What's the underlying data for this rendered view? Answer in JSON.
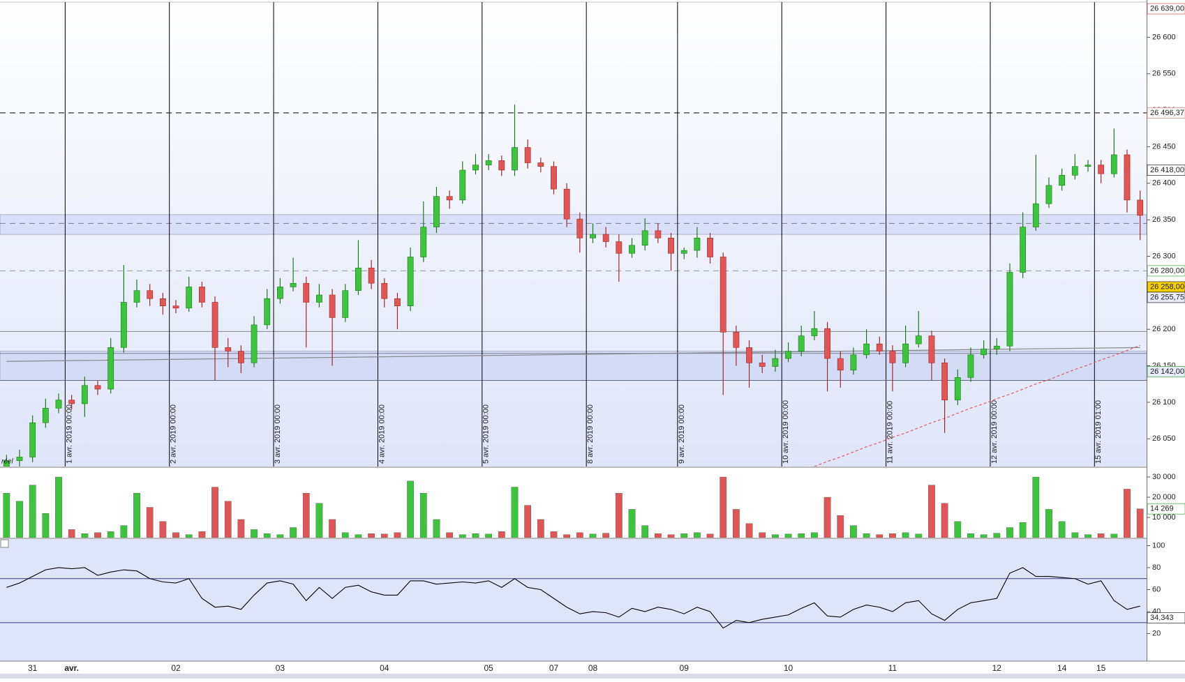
{
  "chart_data": [
    {
      "type": "candlestick",
      "categories": [
        null,
        null,
        "31",
        null,
        null,
        "avr.",
        null,
        null,
        null,
        null,
        null,
        null,
        null,
        "02",
        null,
        null,
        null,
        null,
        null,
        null,
        null,
        "03",
        null,
        null,
        null,
        null,
        null,
        null,
        null,
        "04",
        null,
        null,
        null,
        null,
        null,
        null,
        null,
        "05",
        null,
        null,
        null,
        null,
        "07",
        null,
        null,
        "08",
        null,
        null,
        null,
        null,
        null,
        null,
        "09",
        null,
        null,
        null,
        null,
        null,
        null,
        null,
        "10",
        null,
        null,
        null,
        null,
        null,
        null,
        null,
        "11",
        null,
        null,
        null,
        null,
        null,
        null,
        null,
        "12",
        null,
        null,
        null,
        null,
        "14",
        null,
        null,
        "15",
        null,
        null,
        null
      ],
      "sessions": [
        null,
        null,
        null,
        null,
        null,
        "1 avr. 2019 00:00",
        null,
        null,
        null,
        null,
        null,
        null,
        null,
        "2 avr. 2019 00:00",
        null,
        null,
        null,
        null,
        null,
        null,
        null,
        "3 avr. 2019 00:00",
        null,
        null,
        null,
        null,
        null,
        null,
        null,
        "4 avr. 2019 00:00",
        null,
        null,
        null,
        null,
        null,
        null,
        null,
        "5 avr. 2019 00:00",
        null,
        null,
        null,
        null,
        null,
        null,
        null,
        "8 avr. 2019 00:00",
        null,
        null,
        null,
        null,
        null,
        null,
        "9 avr. 2019 00:00",
        null,
        null,
        null,
        null,
        null,
        null,
        null,
        "10 avr. 2019 00:00",
        null,
        null,
        null,
        null,
        null,
        null,
        null,
        "11 avr. 2019 00:00",
        null,
        null,
        null,
        null,
        null,
        null,
        null,
        "12 avr. 2019 00:00",
        null,
        null,
        null,
        null,
        null,
        null,
        null,
        "15 avr. 2019 01:00",
        null,
        null,
        null
      ],
      "open": [
        26012,
        26020,
        26025,
        26072,
        26092,
        26103,
        26098,
        26123,
        26118,
        26175,
        26237,
        26253,
        26242,
        26232,
        26229,
        26258,
        26237,
        26175,
        26170,
        26154,
        26206,
        26242,
        26258,
        26263,
        26237,
        26247,
        26216,
        26253,
        26284,
        26263,
        26242,
        26232,
        26299,
        26340,
        26382,
        26377,
        26418,
        26425,
        26431,
        26418,
        26449,
        26428,
        26423,
        26392,
        26351,
        26325,
        26330,
        26320,
        26304,
        26315,
        26335,
        26325,
        26304,
        26308,
        26325,
        26299,
        26196,
        26175,
        26154,
        26149,
        26160,
        26170,
        26191,
        26201,
        26160,
        26144,
        26165,
        26180,
        26170,
        26154,
        26180,
        26191,
        26154,
        26103,
        26134,
        26165,
        26173,
        26177,
        26278,
        26340,
        26372,
        26397,
        26411,
        26423,
        26425,
        26413,
        26439,
        26377
      ],
      "high": [
        26028,
        26035,
        26082,
        26105,
        26112,
        26110,
        26135,
        26130,
        26188,
        26288,
        26268,
        26262,
        26250,
        26240,
        26272,
        26265,
        26245,
        26188,
        26178,
        26218,
        26255,
        26270,
        26298,
        26272,
        26262,
        26255,
        26262,
        26322,
        26295,
        26270,
        26250,
        26312,
        26375,
        26395,
        26390,
        26430,
        26440,
        26440,
        26438,
        26508,
        26460,
        26435,
        26430,
        26400,
        26360,
        26345,
        26340,
        26330,
        26325,
        26352,
        26345,
        26332,
        26312,
        26340,
        26332,
        26305,
        26205,
        26185,
        26165,
        26172,
        26182,
        26205,
        26225,
        26210,
        26170,
        26175,
        26200,
        26190,
        26178,
        26205,
        26225,
        26198,
        26160,
        26145,
        26175,
        26185,
        26188,
        26290,
        26360,
        26439,
        26408,
        26420,
        26440,
        26432,
        26432,
        26475,
        26446,
        26390
      ],
      "low": [
        26000,
        26008,
        26018,
        26065,
        26085,
        26090,
        26080,
        26110,
        26112,
        26168,
        26230,
        26232,
        26220,
        26222,
        26224,
        26230,
        26130,
        26148,
        26140,
        26148,
        26200,
        26235,
        26252,
        26175,
        26230,
        26150,
        26210,
        26247,
        26255,
        26230,
        26200,
        26225,
        26292,
        26332,
        26365,
        26372,
        26412,
        26418,
        26410,
        26410,
        26420,
        26415,
        26385,
        26340,
        26305,
        26318,
        26312,
        26265,
        26298,
        26308,
        26318,
        26280,
        26296,
        26298,
        26290,
        26110,
        26150,
        26120,
        26140,
        26142,
        26155,
        26163,
        26185,
        26115,
        26120,
        26138,
        26160,
        26165,
        26115,
        26148,
        26175,
        26130,
        26058,
        26096,
        26128,
        26160,
        26165,
        26170,
        26270,
        26335,
        26366,
        26390,
        26405,
        26416,
        26400,
        26408,
        26360,
        26322
      ],
      "close": [
        26020,
        26025,
        26072,
        26092,
        26103,
        26098,
        26123,
        26118,
        26175,
        26237,
        26253,
        26242,
        26232,
        26229,
        26258,
        26237,
        26175,
        26170,
        26154,
        26206,
        26242,
        26258,
        26263,
        26237,
        26247,
        26216,
        26253,
        26284,
        26263,
        26242,
        26232,
        26299,
        26340,
        26382,
        26377,
        26418,
        26425,
        26431,
        26418,
        26449,
        26428,
        26423,
        26392,
        26351,
        26325,
        26330,
        26320,
        26304,
        26315,
        26335,
        26325,
        26304,
        26308,
        26325,
        26299,
        26196,
        26175,
        26154,
        26149,
        26160,
        26170,
        26191,
        26201,
        26160,
        26144,
        26165,
        26180,
        26170,
        26154,
        26180,
        26191,
        26154,
        26103,
        26134,
        26165,
        26173,
        26177,
        26278,
        26340,
        26372,
        26397,
        26411,
        26423,
        26425,
        26413,
        26439,
        26377,
        26356
      ],
      "ma": [
        null,
        null,
        null,
        null,
        null,
        null,
        null,
        null,
        null,
        null,
        null,
        null,
        null,
        null,
        null,
        null,
        null,
        null,
        null,
        null,
        null,
        null,
        null,
        null,
        null,
        null,
        null,
        null,
        null,
        null,
        null,
        null,
        null,
        null,
        null,
        null,
        null,
        null,
        null,
        null,
        null,
        null,
        null,
        null,
        null,
        null,
        null,
        null,
        null,
        null,
        null,
        null,
        null,
        null,
        null,
        null,
        null,
        null,
        null,
        null,
        null,
        null,
        26012,
        26019,
        26025,
        26032,
        26039,
        26045,
        26052,
        26058,
        26065,
        26072,
        26078,
        26085,
        26092,
        26098,
        26105,
        26111,
        26118,
        26125,
        26131,
        26138,
        26145,
        26151,
        26158,
        26164,
        26171,
        26178
      ],
      "ma_color": "#e06060",
      "trendline": [
        26156,
        26175
      ],
      "up_color": "#3cc43c",
      "down_color": "#e05555",
      "ylim": [
        26012,
        26651
      ],
      "yticks": [
        {
          "value": 26050,
          "label": "26 050"
        },
        {
          "value": 26100,
          "label": "26 100"
        },
        {
          "value": 26150,
          "label": "26 150"
        },
        {
          "value": 26200,
          "label": "26 200"
        },
        {
          "value": 26250,
          "label": "26 250"
        },
        {
          "value": 26300,
          "label": "26 300"
        },
        {
          "value": 26350,
          "label": "26 350"
        },
        {
          "value": 26400,
          "label": "26 400"
        },
        {
          "value": 26450,
          "label": "26 450"
        },
        {
          "value": 26500,
          "label": "26 500"
        },
        {
          "value": 26550,
          "label": "26 550"
        },
        {
          "value": 26600,
          "label": "26 600"
        }
      ],
      "bands": [
        {
          "from": 26330,
          "to": 26357
        },
        {
          "from": 26130,
          "to": 26170
        }
      ],
      "levels": [
        {
          "value": 26496.37,
          "style": "dashed",
          "color": "#000000"
        },
        {
          "value": 26345,
          "style": "dashed",
          "color": "#000000"
        },
        {
          "value": 26280,
          "style": "dashed",
          "color": "#999999"
        },
        {
          "value": 26197,
          "style": "solid",
          "color": "#888888"
        },
        {
          "value": 26167,
          "style": "solid",
          "color": "#000000"
        },
        {
          "value": 26130,
          "style": "solid",
          "color": "#000000"
        }
      ],
      "tags": [
        {
          "value": 26639,
          "label": "26 639,00",
          "color": "#d03030",
          "bg": "#ffffff"
        },
        {
          "value": 26496.37,
          "label": "26 496,37",
          "color": "#e07070",
          "bg": "#ffffff"
        },
        {
          "value": 26418,
          "label": "26 418,00",
          "color": "#000000",
          "bg": "#ffffff"
        },
        {
          "value": 26280,
          "label": "26 280,00",
          "color": "#209020",
          "bg": "#ffffff"
        },
        {
          "value": 26258,
          "label": "26 258,00",
          "color": "#000000",
          "bg": "#f5d000"
        },
        {
          "value": 26255.75,
          "label": "26 255,75",
          "color": "#000000",
          "bg": "#e8ecf8"
        },
        {
          "value": 26142,
          "label": "26 142,00",
          "color": "#209020",
          "bg": "#e8ecf8"
        }
      ],
      "annotation": "réel"
    },
    {
      "type": "bar",
      "values": [
        22000,
        18000,
        26000,
        12000,
        30000,
        4000,
        2000,
        2500,
        3000,
        6000,
        22000,
        15000,
        8000,
        2500,
        1500,
        3000,
        25000,
        18000,
        9000,
        4000,
        2000,
        1500,
        5000,
        22000,
        17000,
        9000,
        2500,
        1500,
        2000,
        1800,
        2500,
        28000,
        22000,
        9000,
        2500,
        1500,
        2000,
        1800,
        3000,
        25000,
        16000,
        9000,
        3000,
        1500,
        2500,
        1800,
        2200,
        22000,
        14000,
        6000,
        2000,
        1500,
        2000,
        2500,
        1800,
        30000,
        14000,
        7000,
        2500,
        1500,
        1800,
        2000,
        2500,
        20000,
        11000,
        6000,
        2000,
        1500,
        2000,
        2500,
        1800,
        26000,
        17000,
        8000,
        2000,
        1500,
        2200,
        5000,
        7500,
        30000,
        14000,
        8000,
        2500,
        1500,
        2000,
        1800,
        24000,
        14269
      ],
      "up_color": "#3cc43c",
      "down_color": "#e05555",
      "ylim": [
        0,
        34500
      ],
      "yticks": [
        {
          "value": 10000,
          "label": "10 000"
        },
        {
          "value": 20000,
          "label": "20 000"
        },
        {
          "value": 30000,
          "label": "30 000"
        }
      ],
      "tags": [
        {
          "value": 14269,
          "label": "14 269",
          "color": "#209020",
          "bg": "#ffffff"
        }
      ]
    },
    {
      "type": "line",
      "values": [
        62,
        66,
        72,
        78,
        80,
        79,
        80,
        73,
        76,
        78,
        77,
        70,
        67,
        66,
        70,
        52,
        44,
        45,
        42,
        55,
        66,
        68,
        65,
        50,
        62,
        52,
        62,
        64,
        58,
        55,
        55,
        68,
        68,
        65,
        66,
        67,
        66,
        68,
        62,
        70,
        62,
        60,
        52,
        44,
        38,
        40,
        39,
        35,
        43,
        40,
        44,
        42,
        38,
        44,
        40,
        25,
        32,
        30,
        33,
        35,
        37,
        43,
        48,
        36,
        35,
        42,
        46,
        44,
        40,
        48,
        50,
        38,
        32,
        42,
        48,
        50,
        52,
        75,
        80,
        72,
        72,
        71,
        70,
        65,
        68,
        50,
        42,
        45
      ],
      "color": "#000000",
      "ylim": [
        -5,
        106
      ],
      "yticks": [
        20,
        40,
        60,
        80,
        100
      ],
      "levels": [
        {
          "value": 70,
          "style": "solid",
          "color": "#3a3a8a"
        },
        {
          "value": 30,
          "style": "solid",
          "color": "#3a3a8a"
        }
      ],
      "tags": [
        {
          "value": 34.343,
          "label": "34,343",
          "color": "#000000",
          "bg": "#ffffff"
        }
      ]
    }
  ]
}
